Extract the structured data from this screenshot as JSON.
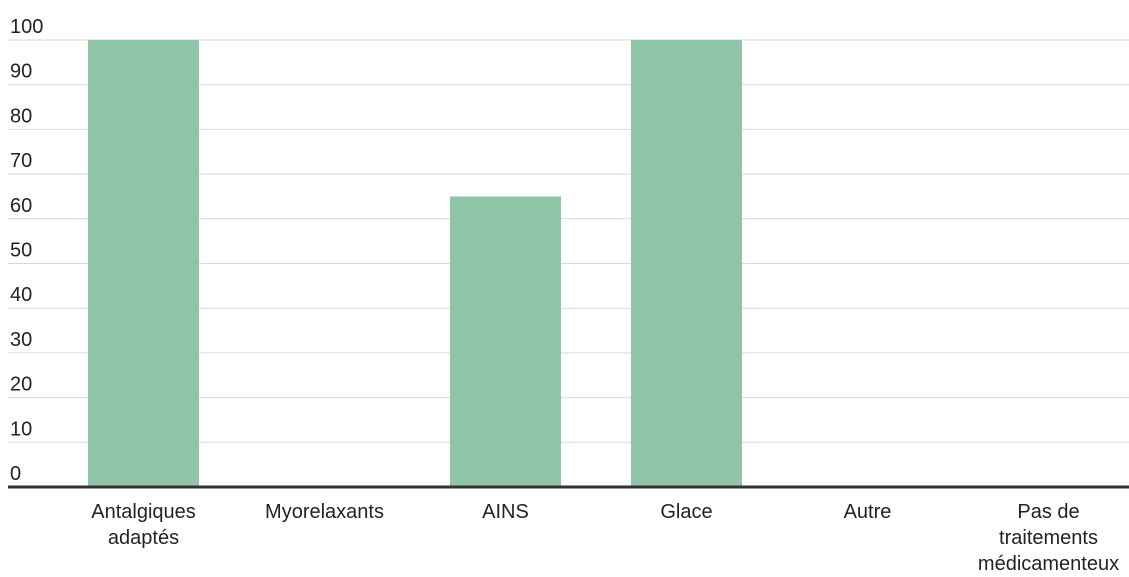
{
  "chart_data": {
    "type": "bar",
    "categories": [
      [
        "Antalgiques",
        "adaptés"
      ],
      [
        "Myorelaxants"
      ],
      [
        "AINS"
      ],
      [
        "Glace"
      ],
      [
        "Autre"
      ],
      [
        "Pas de",
        "traitements",
        "médicamenteux"
      ]
    ],
    "values": [
      100,
      0,
      65,
      100,
      0,
      0
    ],
    "ylim": [
      0,
      100
    ],
    "yticks": [
      "0",
      "10",
      "20",
      "30",
      "40",
      "50",
      "60",
      "70",
      "80",
      "90",
      "100"
    ],
    "grid": true,
    "bar_color": "#8fc4a7",
    "grid_color": "#d9d9d9",
    "axis_color": "#333333",
    "text_color": "#222222"
  }
}
